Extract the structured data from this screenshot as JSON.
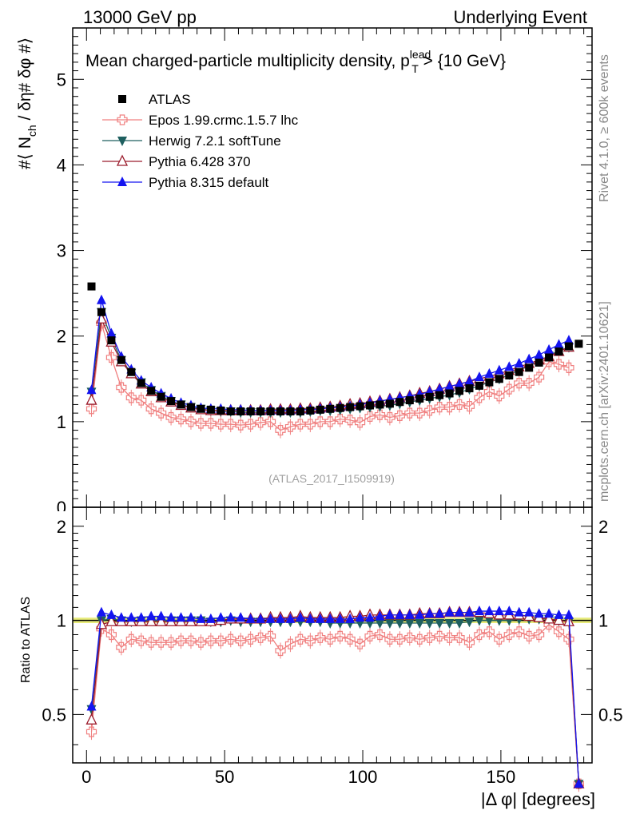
{
  "header": {
    "left": "13000 GeV pp",
    "right": "Underlying Event"
  },
  "side_labels": {
    "rivet": "Rivet 4.1.0, ≥ 600k events",
    "mcplots": "mcplots.cern.ch [arXiv:2401.10621]"
  },
  "chart_data": [
    {
      "type": "scatter",
      "panel": "main",
      "title": "Mean charged-particle multiplicity density, p",
      "title_sup": "lead",
      "title_sub": "T",
      "title_tail": " > {10 GeV}",
      "ylabel": "#⟨ N",
      "ylabel_sub": "ch",
      "ylabel_tail": " / δη# δφ #⟩",
      "watermark": "(ATLAS_2017_I1509919)",
      "xlim": [
        -5,
        183
      ],
      "ylim": [
        0,
        5.6
      ],
      "yticks": [
        1,
        2,
        3,
        4,
        5
      ],
      "yticks_partial": [
        0
      ],
      "series": [
        {
          "name": "ATLAS",
          "color": "#000000",
          "marker": "square",
          "line": false,
          "x": [
            1.8,
            5.4,
            9,
            12.6,
            16.2,
            19.8,
            23.4,
            27,
            30.6,
            34.2,
            37.8,
            41.4,
            45,
            48.6,
            52.2,
            55.8,
            59.4,
            63,
            66.6,
            70.2,
            73.8,
            77.4,
            81,
            84.6,
            88.2,
            91.8,
            95.4,
            99,
            102.6,
            106.2,
            109.8,
            113.4,
            117,
            120.6,
            124.2,
            127.8,
            131.4,
            135,
            138.6,
            142.2,
            145.8,
            149.4,
            153,
            156.6,
            160.2,
            163.8,
            167.4,
            171,
            174.6,
            178.2
          ],
          "y": [
            2.58,
            2.28,
            1.95,
            1.72,
            1.58,
            1.45,
            1.36,
            1.29,
            1.24,
            1.2,
            1.17,
            1.15,
            1.14,
            1.13,
            1.12,
            1.12,
            1.12,
            1.12,
            1.12,
            1.12,
            1.12,
            1.12,
            1.13,
            1.14,
            1.15,
            1.16,
            1.17,
            1.18,
            1.19,
            1.2,
            1.21,
            1.23,
            1.25,
            1.27,
            1.29,
            1.31,
            1.33,
            1.36,
            1.39,
            1.42,
            1.46,
            1.5,
            1.54,
            1.58,
            1.63,
            1.69,
            1.75,
            1.82,
            1.88,
            1.91
          ]
        },
        {
          "name": "Epos 1.99.crmc.1.5.7 lhc",
          "color": "#f08080",
          "marker": "cross",
          "line": true,
          "x": [
            1.8,
            5.4,
            9,
            12.6,
            16.2,
            19.8,
            23.4,
            27,
            30.6,
            34.2,
            37.8,
            41.4,
            45,
            48.6,
            52.2,
            55.8,
            59.4,
            63,
            66.6,
            70.2,
            73.8,
            77.4,
            81,
            84.6,
            88.2,
            91.8,
            95.4,
            99,
            102.6,
            106.2,
            109.8,
            113.4,
            117,
            120.6,
            124.2,
            127.8,
            131.4,
            135,
            138.6,
            142.2,
            145.8,
            149.4,
            153,
            156.6,
            160.2,
            163.8,
            167.4,
            171,
            174.6
          ],
          "y": [
            1.15,
            2.15,
            1.75,
            1.4,
            1.28,
            1.25,
            1.15,
            1.1,
            1.05,
            1.03,
            1.0,
            0.98,
            0.98,
            0.97,
            0.97,
            0.96,
            0.97,
            0.99,
            1.0,
            0.9,
            0.94,
            0.97,
            0.97,
            1.0,
            1.0,
            1.03,
            1.02,
            0.99,
            1.06,
            1.08,
            1.05,
            1.07,
            1.1,
            1.1,
            1.13,
            1.17,
            1.17,
            1.2,
            1.18,
            1.28,
            1.35,
            1.3,
            1.38,
            1.45,
            1.45,
            1.52,
            1.7,
            1.67,
            1.63
          ]
        },
        {
          "name": "Herwig 7.2.1 softTune",
          "color": "#1e5f5f",
          "marker": "tridown",
          "line": true,
          "x": [
            1.8,
            5.4,
            9,
            12.6,
            16.2,
            19.8,
            23.4,
            27,
            30.6,
            34.2,
            37.8,
            41.4,
            45,
            48.6,
            52.2,
            55.8,
            59.4,
            63,
            66.6,
            70.2,
            73.8,
            77.4,
            81,
            84.6,
            88.2,
            91.8,
            95.4,
            99,
            102.6,
            106.2,
            109.8,
            113.4,
            117,
            120.6,
            124.2,
            127.8,
            131.4,
            135,
            138.6,
            142.2,
            145.8,
            149.4,
            153,
            156.6,
            160.2,
            163.8,
            167.4,
            171,
            174.6
          ],
          "y": [
            1.35,
            2.28,
            1.98,
            1.72,
            1.57,
            1.46,
            1.37,
            1.3,
            1.24,
            1.2,
            1.17,
            1.15,
            1.13,
            1.12,
            1.12,
            1.11,
            1.11,
            1.11,
            1.11,
            1.11,
            1.11,
            1.11,
            1.12,
            1.13,
            1.13,
            1.14,
            1.15,
            1.16,
            1.17,
            1.18,
            1.19,
            1.21,
            1.23,
            1.25,
            1.27,
            1.29,
            1.31,
            1.34,
            1.38,
            1.42,
            1.46,
            1.5,
            1.55,
            1.6,
            1.65,
            1.71,
            1.77,
            1.83,
            1.87
          ]
        },
        {
          "name": "Pythia 6.428 370",
          "color": "#9b1c2c",
          "marker": "triup-open",
          "line": true,
          "x": [
            1.8,
            5.4,
            9,
            12.6,
            16.2,
            19.8,
            23.4,
            27,
            30.6,
            34.2,
            37.8,
            41.4,
            45,
            48.6,
            52.2,
            55.8,
            59.4,
            63,
            66.6,
            70.2,
            73.8,
            77.4,
            81,
            84.6,
            88.2,
            91.8,
            95.4,
            99,
            102.6,
            106.2,
            109.8,
            113.4,
            117,
            120.6,
            124.2,
            127.8,
            131.4,
            135,
            138.6,
            142.2,
            145.8,
            149.4,
            153,
            156.6,
            160.2,
            163.8,
            167.4,
            171,
            174.6
          ],
          "y": [
            1.25,
            2.2,
            1.93,
            1.7,
            1.56,
            1.44,
            1.35,
            1.28,
            1.23,
            1.19,
            1.16,
            1.14,
            1.13,
            1.13,
            1.13,
            1.13,
            1.13,
            1.13,
            1.14,
            1.14,
            1.14,
            1.15,
            1.15,
            1.16,
            1.17,
            1.18,
            1.2,
            1.21,
            1.23,
            1.24,
            1.26,
            1.28,
            1.3,
            1.33,
            1.35,
            1.38,
            1.41,
            1.44,
            1.47,
            1.5,
            1.53,
            1.56,
            1.6,
            1.64,
            1.68,
            1.72,
            1.76,
            1.82,
            1.87
          ]
        },
        {
          "name": "Pythia 8.315 default",
          "color": "#1414f0",
          "marker": "triup",
          "line": true,
          "x": [
            1.8,
            5.4,
            9,
            12.6,
            16.2,
            19.8,
            23.4,
            27,
            30.6,
            34.2,
            37.8,
            41.4,
            45,
            48.6,
            52.2,
            55.8,
            59.4,
            63,
            66.6,
            70.2,
            73.8,
            77.4,
            81,
            84.6,
            88.2,
            91.8,
            95.4,
            99,
            102.6,
            106.2,
            109.8,
            113.4,
            117,
            120.6,
            124.2,
            127.8,
            131.4,
            135,
            138.6,
            142.2,
            145.8,
            149.4,
            153,
            156.6,
            160.2,
            163.8,
            167.4,
            171,
            174.6
          ],
          "y": [
            1.37,
            2.42,
            2.03,
            1.76,
            1.61,
            1.48,
            1.4,
            1.33,
            1.27,
            1.22,
            1.19,
            1.16,
            1.15,
            1.15,
            1.14,
            1.14,
            1.13,
            1.13,
            1.13,
            1.13,
            1.13,
            1.14,
            1.14,
            1.15,
            1.16,
            1.17,
            1.18,
            1.2,
            1.22,
            1.24,
            1.26,
            1.28,
            1.3,
            1.32,
            1.35,
            1.38,
            1.41,
            1.44,
            1.47,
            1.52,
            1.56,
            1.6,
            1.64,
            1.68,
            1.73,
            1.78,
            1.84,
            1.9,
            1.95
          ]
        }
      ]
    },
    {
      "type": "scatter",
      "panel": "ratio",
      "ylabel": "Ratio to ATLAS",
      "xlabel": "|Δ φ| [degrees]",
      "xlim": [
        -5,
        183
      ],
      "ylim": [
        0.35,
        2.3
      ],
      "yticks": [
        0.5,
        1,
        2
      ],
      "xticks": [
        0,
        50,
        100,
        150
      ],
      "band": {
        "color": "#e8ec7a",
        "low": 0.98,
        "high": 1.02
      },
      "series": [
        {
          "name": "Epos 1.99.crmc.1.5.7 lhc",
          "color": "#f08080",
          "marker": "cross",
          "x": [
            1.8,
            5.4,
            9,
            12.6,
            16.2,
            19.8,
            23.4,
            27,
            30.6,
            34.2,
            37.8,
            41.4,
            45,
            48.6,
            52.2,
            55.8,
            59.4,
            63,
            66.6,
            70.2,
            73.8,
            77.4,
            81,
            84.6,
            88.2,
            91.8,
            95.4,
            99,
            102.6,
            106.2,
            109.8,
            113.4,
            117,
            120.6,
            124.2,
            127.8,
            131.4,
            135,
            138.6,
            142.2,
            145.8,
            149.4,
            153,
            156.6,
            160.2,
            163.8,
            167.4,
            171,
            174.6,
            178.2
          ],
          "y": [
            0.44,
            0.94,
            0.9,
            0.82,
            0.87,
            0.86,
            0.85,
            0.85,
            0.85,
            0.86,
            0.86,
            0.85,
            0.86,
            0.86,
            0.87,
            0.86,
            0.87,
            0.88,
            0.89,
            0.8,
            0.84,
            0.87,
            0.86,
            0.88,
            0.87,
            0.89,
            0.87,
            0.84,
            0.89,
            0.9,
            0.87,
            0.87,
            0.88,
            0.87,
            0.88,
            0.89,
            0.88,
            0.88,
            0.85,
            0.9,
            0.92,
            0.87,
            0.9,
            0.92,
            0.89,
            0.9,
            0.97,
            0.92,
            0.87,
            0.3
          ]
        },
        {
          "name": "Herwig 7.2.1 softTune",
          "color": "#1e5f5f",
          "marker": "tridown",
          "x": [
            1.8,
            5.4,
            9,
            12.6,
            16.2,
            19.8,
            23.4,
            27,
            30.6,
            34.2,
            37.8,
            41.4,
            45,
            48.6,
            52.2,
            55.8,
            59.4,
            63,
            66.6,
            70.2,
            73.8,
            77.4,
            81,
            84.6,
            88.2,
            91.8,
            95.4,
            99,
            102.6,
            106.2,
            109.8,
            113.4,
            117,
            120.6,
            124.2,
            127.8,
            131.4,
            135,
            138.6,
            142.2,
            145.8,
            149.4,
            153,
            156.6,
            160.2,
            163.8,
            167.4,
            171,
            174.6,
            178.2
          ],
          "y": [
            0.52,
            1.0,
            1.01,
            1.0,
            0.99,
            1.0,
            1.0,
            1.0,
            1.0,
            1.0,
            1.0,
            1.0,
            0.99,
            0.99,
            1.0,
            0.99,
            0.99,
            0.99,
            0.99,
            0.99,
            0.99,
            0.99,
            0.99,
            0.99,
            0.98,
            0.98,
            0.98,
            0.98,
            0.98,
            0.98,
            0.98,
            0.98,
            0.98,
            0.98,
            0.98,
            0.98,
            0.98,
            0.98,
            0.99,
            1.0,
            1.0,
            1.0,
            1.0,
            1.01,
            1.01,
            1.01,
            1.01,
            1.0,
            0.99,
            0.3
          ]
        },
        {
          "name": "Pythia 6.428 370",
          "color": "#9b1c2c",
          "marker": "triup-open",
          "x": [
            1.8,
            5.4,
            9,
            12.6,
            16.2,
            19.8,
            23.4,
            27,
            30.6,
            34.2,
            37.8,
            41.4,
            45,
            48.6,
            52.2,
            55.8,
            59.4,
            63,
            66.6,
            70.2,
            73.8,
            77.4,
            81,
            84.6,
            88.2,
            91.8,
            95.4,
            99,
            102.6,
            106.2,
            109.8,
            113.4,
            117,
            120.6,
            124.2,
            127.8,
            131.4,
            135,
            138.6,
            142.2,
            145.8,
            149.4,
            153,
            156.6,
            160.2,
            163.8,
            167.4,
            171,
            174.6,
            178.2
          ],
          "y": [
            0.48,
            0.97,
            0.99,
            0.99,
            0.99,
            0.99,
            0.99,
            0.99,
            0.99,
            0.99,
            0.99,
            0.99,
            0.99,
            1.0,
            1.01,
            1.01,
            1.01,
            1.01,
            1.02,
            1.02,
            1.02,
            1.03,
            1.02,
            1.02,
            1.02,
            1.02,
            1.03,
            1.03,
            1.04,
            1.04,
            1.04,
            1.04,
            1.04,
            1.05,
            1.05,
            1.05,
            1.06,
            1.06,
            1.06,
            1.06,
            1.05,
            1.04,
            1.04,
            1.04,
            1.03,
            1.02,
            1.01,
            1.0,
            0.99,
            0.3
          ]
        },
        {
          "name": "Pythia 8.315 default",
          "color": "#1414f0",
          "marker": "triup",
          "x": [
            1.8,
            5.4,
            9,
            12.6,
            16.2,
            19.8,
            23.4,
            27,
            30.6,
            34.2,
            37.8,
            41.4,
            45,
            48.6,
            52.2,
            55.8,
            59.4,
            63,
            66.6,
            70.2,
            73.8,
            77.4,
            81,
            84.6,
            88.2,
            91.8,
            95.4,
            99,
            102.6,
            106.2,
            109.8,
            113.4,
            117,
            120.6,
            124.2,
            127.8,
            131.4,
            135,
            138.6,
            142.2,
            145.8,
            149.4,
            153,
            156.6,
            160.2,
            163.8,
            167.4,
            171,
            174.6,
            178.2
          ],
          "y": [
            0.53,
            1.06,
            1.04,
            1.02,
            1.02,
            1.02,
            1.03,
            1.03,
            1.02,
            1.02,
            1.02,
            1.01,
            1.01,
            1.02,
            1.02,
            1.02,
            1.01,
            1.01,
            1.01,
            1.01,
            1.01,
            1.02,
            1.01,
            1.01,
            1.01,
            1.01,
            1.01,
            1.02,
            1.02,
            1.03,
            1.04,
            1.04,
            1.04,
            1.04,
            1.05,
            1.05,
            1.06,
            1.06,
            1.06,
            1.07,
            1.07,
            1.07,
            1.07,
            1.06,
            1.06,
            1.05,
            1.05,
            1.04,
            1.04,
            0.3
          ]
        }
      ]
    }
  ]
}
